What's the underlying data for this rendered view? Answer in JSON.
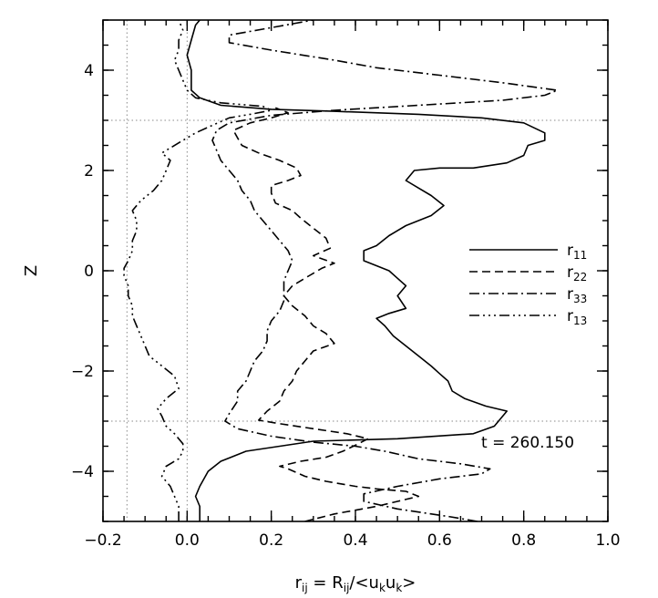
{
  "chart_data": {
    "type": "line",
    "orientation": "x-value-vs-z",
    "title": "",
    "xlabel": {
      "main": "r",
      "sub": "ij",
      "eq": " = R",
      "sub2": "ij",
      "tail": "/<u",
      "sub3": "k",
      "tail2": "u",
      "sub4": "k",
      "end": ">"
    },
    "ylabel": "Z",
    "xlim": [
      -0.2,
      1.0
    ],
    "ylim": [
      -5,
      5
    ],
    "xticks": [
      "-0.2",
      "0.0",
      "0.2",
      "0.4",
      "0.6",
      "0.8",
      "1.0"
    ],
    "yticks": [
      "-4",
      "-2",
      "0",
      "2",
      "4"
    ],
    "annotation": "t = 260.150",
    "legend_position": "right-middle",
    "reference_lines": {
      "vertical": [
        -0.143,
        0.0
      ],
      "horizontal": [
        -3.0,
        3.0
      ]
    },
    "series": [
      {
        "name": "r",
        "sub": "11",
        "dash": "solid",
        "points": [
          [
            0.03,
            -5.0
          ],
          [
            0.03,
            -4.7
          ],
          [
            0.02,
            -4.5
          ],
          [
            0.03,
            -4.3
          ],
          [
            0.05,
            -4.0
          ],
          [
            0.08,
            -3.8
          ],
          [
            0.14,
            -3.6
          ],
          [
            0.22,
            -3.5
          ],
          [
            0.3,
            -3.4
          ],
          [
            0.5,
            -3.35
          ],
          [
            0.68,
            -3.25
          ],
          [
            0.73,
            -3.1
          ],
          [
            0.76,
            -2.8
          ],
          [
            0.71,
            -2.7
          ],
          [
            0.66,
            -2.55
          ],
          [
            0.63,
            -2.4
          ],
          [
            0.62,
            -2.2
          ],
          [
            0.6,
            -2.05
          ],
          [
            0.58,
            -1.9
          ],
          [
            0.55,
            -1.7
          ],
          [
            0.52,
            -1.5
          ],
          [
            0.49,
            -1.3
          ],
          [
            0.47,
            -1.1
          ],
          [
            0.45,
            -0.95
          ],
          [
            0.48,
            -0.85
          ],
          [
            0.52,
            -0.75
          ],
          [
            0.5,
            -0.5
          ],
          [
            0.52,
            -0.3
          ],
          [
            0.5,
            -0.15
          ],
          [
            0.48,
            0.0
          ],
          [
            0.45,
            0.1
          ],
          [
            0.42,
            0.2
          ],
          [
            0.42,
            0.4
          ],
          [
            0.45,
            0.5
          ],
          [
            0.48,
            0.7
          ],
          [
            0.52,
            0.9
          ],
          [
            0.58,
            1.1
          ],
          [
            0.61,
            1.3
          ],
          [
            0.58,
            1.5
          ],
          [
            0.55,
            1.65
          ],
          [
            0.52,
            1.8
          ],
          [
            0.54,
            2.0
          ],
          [
            0.6,
            2.05
          ],
          [
            0.68,
            2.05
          ],
          [
            0.76,
            2.15
          ],
          [
            0.8,
            2.3
          ],
          [
            0.81,
            2.5
          ],
          [
            0.85,
            2.6
          ],
          [
            0.85,
            2.75
          ],
          [
            0.8,
            2.95
          ],
          [
            0.7,
            3.05
          ],
          [
            0.55,
            3.12
          ],
          [
            0.35,
            3.18
          ],
          [
            0.2,
            3.22
          ],
          [
            0.08,
            3.3
          ],
          [
            0.03,
            3.45
          ],
          [
            0.01,
            3.6
          ],
          [
            0.01,
            3.8
          ],
          [
            0.01,
            4.0
          ],
          [
            0.0,
            4.3
          ],
          [
            0.01,
            4.6
          ],
          [
            0.02,
            4.9
          ],
          [
            0.03,
            5.0
          ]
        ]
      },
      {
        "name": "r",
        "sub": "22",
        "dash": "dashed",
        "points": [
          [
            0.28,
            -5.0
          ],
          [
            0.35,
            -4.85
          ],
          [
            0.45,
            -4.7
          ],
          [
            0.5,
            -4.6
          ],
          [
            0.55,
            -4.5
          ],
          [
            0.52,
            -4.4
          ],
          [
            0.45,
            -4.35
          ],
          [
            0.4,
            -4.3
          ],
          [
            0.33,
            -4.2
          ],
          [
            0.28,
            -4.1
          ],
          [
            0.24,
            -3.95
          ],
          [
            0.22,
            -3.9
          ],
          [
            0.27,
            -3.8
          ],
          [
            0.33,
            -3.72
          ],
          [
            0.37,
            -3.6
          ],
          [
            0.4,
            -3.48
          ],
          [
            0.43,
            -3.35
          ],
          [
            0.38,
            -3.25
          ],
          [
            0.3,
            -3.15
          ],
          [
            0.22,
            -3.05
          ],
          [
            0.17,
            -2.98
          ],
          [
            0.19,
            -2.8
          ],
          [
            0.22,
            -2.6
          ],
          [
            0.23,
            -2.4
          ],
          [
            0.25,
            -2.2
          ],
          [
            0.26,
            -2.0
          ],
          [
            0.28,
            -1.8
          ],
          [
            0.3,
            -1.6
          ],
          [
            0.35,
            -1.45
          ],
          [
            0.33,
            -1.25
          ],
          [
            0.3,
            -1.1
          ],
          [
            0.28,
            -0.9
          ],
          [
            0.25,
            -0.7
          ],
          [
            0.23,
            -0.5
          ],
          [
            0.25,
            -0.3
          ],
          [
            0.29,
            -0.1
          ],
          [
            0.32,
            0.05
          ],
          [
            0.35,
            0.15
          ],
          [
            0.3,
            0.3
          ],
          [
            0.34,
            0.45
          ],
          [
            0.33,
            0.65
          ],
          [
            0.3,
            0.85
          ],
          [
            0.27,
            1.05
          ],
          [
            0.25,
            1.2
          ],
          [
            0.21,
            1.35
          ],
          [
            0.2,
            1.55
          ],
          [
            0.2,
            1.7
          ],
          [
            0.24,
            1.8
          ],
          [
            0.27,
            1.9
          ],
          [
            0.26,
            2.05
          ],
          [
            0.22,
            2.2
          ],
          [
            0.17,
            2.35
          ],
          [
            0.13,
            2.5
          ],
          [
            0.12,
            2.65
          ],
          [
            0.11,
            2.8
          ],
          [
            0.15,
            2.95
          ],
          [
            0.2,
            3.05
          ],
          [
            0.24,
            3.15
          ],
          [
            0.21,
            3.25
          ]
        ]
      },
      {
        "name": "r",
        "sub": "33",
        "dash": "dashdot",
        "points": [
          [
            0.69,
            -5.0
          ],
          [
            0.62,
            -4.9
          ],
          [
            0.5,
            -4.75
          ],
          [
            0.42,
            -4.6
          ],
          [
            0.42,
            -4.45
          ],
          [
            0.5,
            -4.3
          ],
          [
            0.6,
            -4.15
          ],
          [
            0.7,
            -4.05
          ],
          [
            0.72,
            -3.95
          ],
          [
            0.65,
            -3.85
          ],
          [
            0.55,
            -3.75
          ],
          [
            0.47,
            -3.6
          ],
          [
            0.4,
            -3.5
          ],
          [
            0.3,
            -3.42
          ],
          [
            0.2,
            -3.3
          ],
          [
            0.12,
            -3.15
          ],
          [
            0.09,
            -3.0
          ],
          [
            0.1,
            -2.85
          ],
          [
            0.12,
            -2.6
          ],
          [
            0.12,
            -2.4
          ],
          [
            0.14,
            -2.2
          ],
          [
            0.15,
            -2.0
          ],
          [
            0.16,
            -1.8
          ],
          [
            0.18,
            -1.6
          ],
          [
            0.19,
            -1.4
          ],
          [
            0.19,
            -1.2
          ],
          [
            0.2,
            -1.0
          ],
          [
            0.22,
            -0.8
          ],
          [
            0.23,
            -0.6
          ],
          [
            0.23,
            -0.4
          ],
          [
            0.23,
            -0.2
          ],
          [
            0.24,
            0.0
          ],
          [
            0.25,
            0.2
          ],
          [
            0.24,
            0.4
          ],
          [
            0.22,
            0.6
          ],
          [
            0.2,
            0.8
          ],
          [
            0.18,
            1.0
          ],
          [
            0.16,
            1.2
          ],
          [
            0.15,
            1.4
          ],
          [
            0.13,
            1.6
          ],
          [
            0.12,
            1.8
          ],
          [
            0.1,
            2.0
          ],
          [
            0.08,
            2.2
          ],
          [
            0.07,
            2.4
          ],
          [
            0.06,
            2.6
          ],
          [
            0.07,
            2.8
          ],
          [
            0.1,
            2.95
          ],
          [
            0.2,
            3.1
          ],
          [
            0.35,
            3.2
          ],
          [
            0.55,
            3.3
          ],
          [
            0.75,
            3.4
          ],
          [
            0.85,
            3.5
          ],
          [
            0.88,
            3.6
          ],
          [
            0.75,
            3.75
          ],
          [
            0.6,
            3.9
          ],
          [
            0.45,
            4.05
          ],
          [
            0.35,
            4.2
          ],
          [
            0.2,
            4.4
          ],
          [
            0.1,
            4.55
          ],
          [
            0.1,
            4.7
          ],
          [
            0.2,
            4.85
          ],
          [
            0.3,
            5.0
          ]
        ]
      },
      {
        "name": "r",
        "sub": "13",
        "dash": "dashdotdotdot",
        "points": [
          [
            -0.02,
            -5.0
          ],
          [
            -0.02,
            -4.7
          ],
          [
            -0.03,
            -4.5
          ],
          [
            -0.04,
            -4.3
          ],
          [
            -0.06,
            -4.1
          ],
          [
            -0.05,
            -3.9
          ],
          [
            -0.02,
            -3.75
          ],
          [
            -0.01,
            -3.6
          ],
          [
            -0.01,
            -3.45
          ],
          [
            -0.03,
            -3.25
          ],
          [
            -0.05,
            -3.1
          ],
          [
            -0.06,
            -2.9
          ],
          [
            -0.07,
            -2.75
          ],
          [
            -0.05,
            -2.55
          ],
          [
            -0.02,
            -2.35
          ],
          [
            -0.03,
            -2.1
          ],
          [
            -0.06,
            -1.9
          ],
          [
            -0.09,
            -1.7
          ],
          [
            -0.1,
            -1.5
          ],
          [
            -0.11,
            -1.3
          ],
          [
            -0.12,
            -1.1
          ],
          [
            -0.13,
            -0.9
          ],
          [
            -0.13,
            -0.7
          ],
          [
            -0.14,
            -0.5
          ],
          [
            -0.14,
            -0.3
          ],
          [
            -0.15,
            -0.1
          ],
          [
            -0.15,
            0.05
          ],
          [
            -0.14,
            0.2
          ],
          [
            -0.13,
            0.4
          ],
          [
            -0.13,
            0.6
          ],
          [
            -0.12,
            0.8
          ],
          [
            -0.12,
            1.0
          ],
          [
            -0.13,
            1.2
          ],
          [
            -0.11,
            1.4
          ],
          [
            -0.08,
            1.6
          ],
          [
            -0.06,
            1.8
          ],
          [
            -0.05,
            2.0
          ],
          [
            -0.04,
            2.2
          ],
          [
            -0.06,
            2.35
          ],
          [
            -0.04,
            2.45
          ],
          [
            -0.01,
            2.6
          ],
          [
            0.02,
            2.75
          ],
          [
            0.06,
            2.9
          ],
          [
            0.1,
            3.05
          ],
          [
            0.15,
            3.12
          ],
          [
            0.2,
            3.2
          ],
          [
            0.18,
            3.28
          ],
          [
            0.08,
            3.35
          ],
          [
            0.02,
            3.45
          ],
          [
            0.0,
            3.6
          ],
          [
            -0.01,
            3.8
          ],
          [
            -0.02,
            4.0
          ],
          [
            -0.03,
            4.2
          ],
          [
            -0.02,
            4.4
          ],
          [
            -0.02,
            4.6
          ],
          [
            -0.01,
            4.8
          ],
          [
            -0.02,
            5.0
          ]
        ]
      }
    ]
  }
}
